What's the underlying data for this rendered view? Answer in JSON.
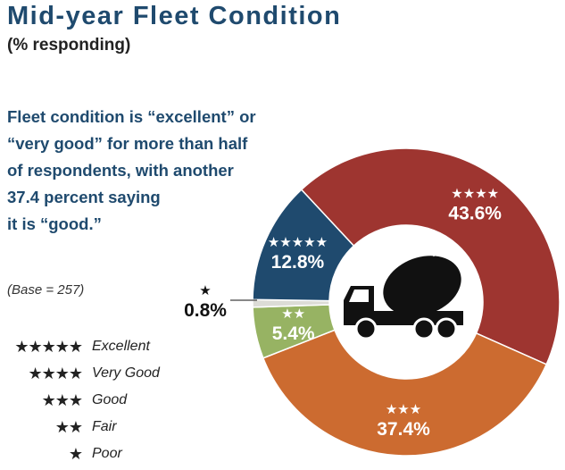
{
  "title": "Mid-year Fleet Condition",
  "subtitle": "(% responding)",
  "description": [
    "Fleet condition is “excellent” or",
    "“very good” for more than half",
    "of respondents, with another",
    "37.4 percent saying",
    "it is “good.”"
  ],
  "base_note": "(Base = 257)",
  "legend": [
    {
      "stars": "★★★★★",
      "label": "Excellent"
    },
    {
      "stars": "★★★★",
      "label": "Very Good"
    },
    {
      "stars": "★★★",
      "label": "Good"
    },
    {
      "stars": "★★",
      "label": "Fair"
    },
    {
      "stars": "★",
      "label": "Poor"
    }
  ],
  "center_icon": "cement-mixer-truck-icon",
  "chart_data": {
    "type": "pie",
    "donut": true,
    "title": "Mid-year Fleet Condition",
    "subtitle": "(% responding)",
    "slices": [
      {
        "category": "Very Good",
        "stars": "★★★★",
        "value": 43.6,
        "label": "43.6%",
        "color": "#9e3530"
      },
      {
        "category": "Good",
        "stars": "★★★",
        "value": 37.4,
        "label": "37.4%",
        "color": "#cc6b30"
      },
      {
        "category": "Fair",
        "stars": "★★",
        "value": 5.4,
        "label": "5.4%",
        "color": "#97b363"
      },
      {
        "category": "Poor",
        "stars": "★",
        "value": 0.8,
        "label": "0.8%",
        "color": "#dcdcd6"
      },
      {
        "category": "Excellent",
        "stars": "★★★★★",
        "value": 12.8,
        "label": "12.8%",
        "color": "#1f4a6e"
      }
    ]
  }
}
